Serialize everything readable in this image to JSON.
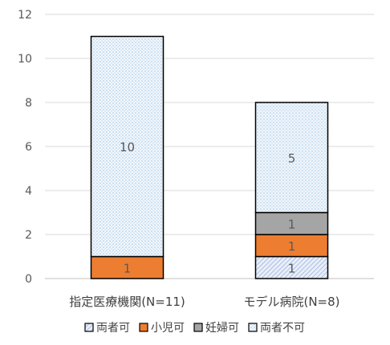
{
  "chart_data": {
    "type": "bar",
    "stacked": true,
    "title": "",
    "xlabel": "",
    "ylabel": "",
    "categories": [
      "指定医療機関(N=11)",
      "モデル病院(N=8)"
    ],
    "ylim": [
      0,
      12
    ],
    "yticks": [
      0,
      2,
      4,
      6,
      8,
      10,
      12
    ],
    "grid": true,
    "legend_position": "bottom",
    "series": [
      {
        "name": "両者可",
        "values": [
          0,
          1
        ],
        "color": "#dae3f3",
        "pattern": "diagonal-hatch",
        "labels": [
          "",
          "1"
        ]
      },
      {
        "name": "小児可",
        "values": [
          1,
          1
        ],
        "color": "#ed7d31",
        "pattern": "solid",
        "labels": [
          "1",
          "1"
        ]
      },
      {
        "name": "妊婦可",
        "values": [
          0,
          1
        ],
        "color": "#a5a5a5",
        "pattern": "solid",
        "labels": [
          "",
          "1"
        ]
      },
      {
        "name": "両者不可",
        "values": [
          10,
          5
        ],
        "color": "#ddebf7",
        "pattern": "dots",
        "labels": [
          "10",
          "5"
        ]
      }
    ]
  }
}
